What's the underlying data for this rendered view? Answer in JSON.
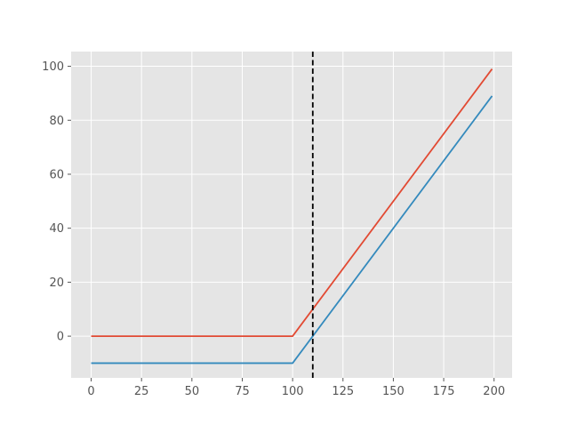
{
  "chart_data": {
    "type": "line",
    "title": "",
    "xlabel": "",
    "ylabel": "",
    "xlim": [
      -9.95,
      208.95
    ],
    "ylim": [
      -15.45,
      105.45
    ],
    "xticks": [
      0,
      25,
      50,
      75,
      100,
      125,
      150,
      175,
      200
    ],
    "yticks": [
      0,
      20,
      40,
      60,
      80,
      100
    ],
    "grid": true,
    "legend": "none",
    "series": [
      {
        "color": "#E24A33",
        "x": [
          0,
          100,
          199
        ],
        "y": [
          0,
          0,
          99
        ]
      },
      {
        "color": "#348ABD",
        "x": [
          0,
          100,
          199
        ],
        "y": [
          -10,
          -10,
          89
        ]
      }
    ],
    "vlines": [
      {
        "x": 110,
        "color": "#000000",
        "style": "dashed"
      }
    ]
  },
  "colors": {
    "plot_background": "#E5E5E5",
    "grid": "#FFFFFF",
    "tick_text": "#555555"
  }
}
